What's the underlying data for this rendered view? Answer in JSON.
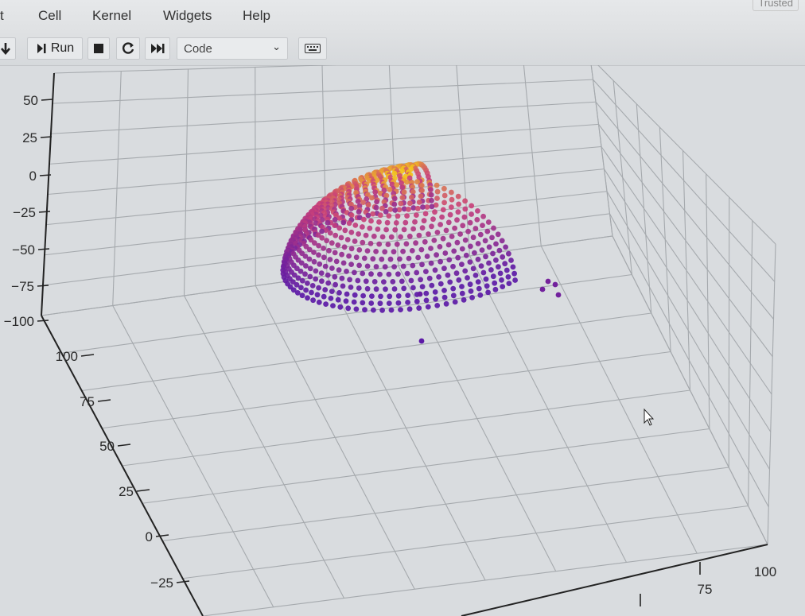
{
  "menubar": {
    "items": [
      "t",
      "Cell",
      "Kernel",
      "Widgets",
      "Help"
    ],
    "trusted": "Trusted"
  },
  "toolbar": {
    "run_label": "Run",
    "cell_type": "Code",
    "icons": [
      "move-down-icon",
      "run-icon",
      "stop-icon",
      "restart-icon",
      "fast-forward-icon",
      "keyboard-icon"
    ]
  },
  "chart_data": {
    "type": "scatter",
    "dimensions": 3,
    "colormap": "plasma",
    "z_ticks": [
      "50",
      "25",
      "0",
      "−25",
      "−50",
      "−75",
      "−100"
    ],
    "y_ticks": [
      "100",
      "75",
      "50",
      "25",
      "0",
      "−25"
    ],
    "x_ticks": [
      "75",
      "100"
    ],
    "grid": true,
    "shape": "dome-shaped point cloud (hemispherical shell) colored by height"
  },
  "colors": {
    "background": "#d9dcdf",
    "grid": "#a5a9ad",
    "cmap_low": "#5c19a6",
    "cmap_mid": "#c9407a",
    "cmap_high": "#f3c21c"
  }
}
